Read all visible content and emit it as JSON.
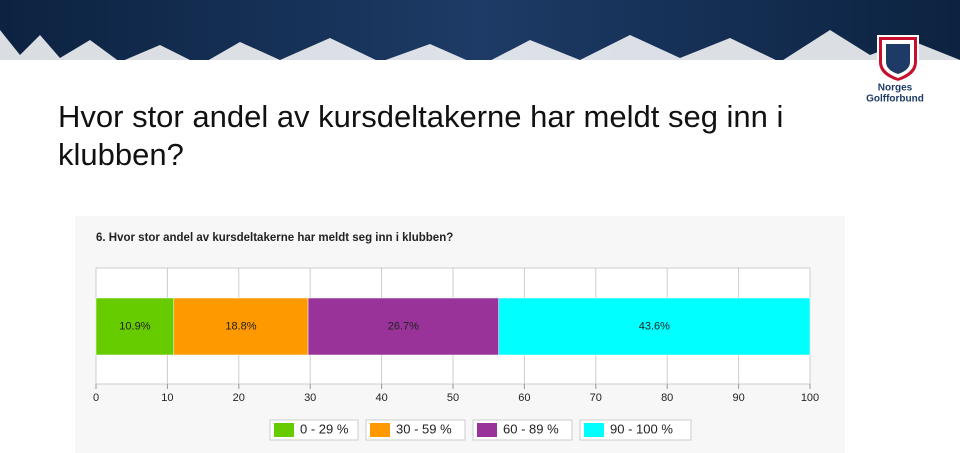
{
  "slide": {
    "title": "Hvor stor andel av kursdeltakerne har meldt seg inn i klubben?",
    "logo_line1": "Norges",
    "logo_line2": "Golfforbund"
  },
  "chart_data": {
    "type": "bar",
    "orientation": "horizontal",
    "stacked": true,
    "title": "6. Hvor stor andel av kursdeltakerne har meldt seg inn i klubben?",
    "series": [
      {
        "name": "0 - 29 %",
        "color": "#66cc00",
        "values": [
          10.9
        ],
        "value_labels": [
          "10.9%"
        ]
      },
      {
        "name": "30 - 59 %",
        "color": "#ff9900",
        "values": [
          18.8
        ],
        "value_labels": [
          "18.8%"
        ]
      },
      {
        "name": "60 - 89 %",
        "color": "#993399",
        "values": [
          26.7
        ],
        "value_labels": [
          "26.7%"
        ]
      },
      {
        "name": "90 - 100 %",
        "color": "#00ffff",
        "values": [
          43.6
        ],
        "value_labels": [
          "43.6%"
        ]
      }
    ],
    "xlim": [
      0,
      100
    ],
    "xticks": [
      0,
      10,
      20,
      30,
      40,
      50,
      60,
      70,
      80,
      90,
      100
    ],
    "grid": true
  }
}
